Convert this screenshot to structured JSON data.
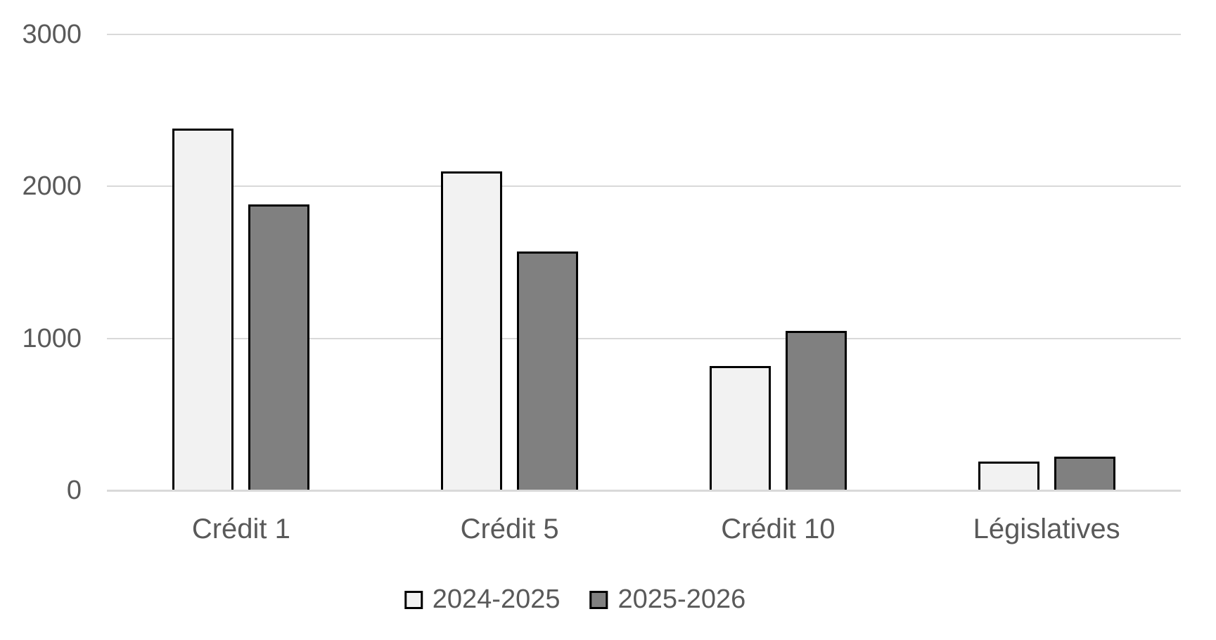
{
  "chart_data": {
    "type": "bar",
    "title": "",
    "xlabel": "",
    "ylabel": "",
    "categories": [
      "Crédit 1",
      "Crédit 5",
      "Crédit 10",
      "Législatives"
    ],
    "series": [
      {
        "name": "2024-2025",
        "values": [
          2380,
          2100,
          820,
          190
        ],
        "fill": "#F2F2F2",
        "border": "#000000"
      },
      {
        "name": "2025-2026",
        "values": [
          1880,
          1570,
          1050,
          220
        ],
        "fill": "#808080",
        "border": "#000000"
      }
    ],
    "ylim": [
      0,
      3000
    ],
    "yticks": [
      0,
      1000,
      2000,
      3000
    ],
    "grid": true,
    "legend_position": "bottom",
    "colors": {
      "gridline": "#D9D9D9",
      "axis_label_text": "#595959",
      "background": "#FFFFFF"
    }
  }
}
